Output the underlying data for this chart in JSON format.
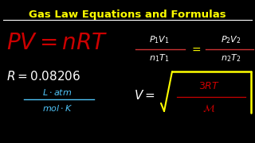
{
  "background_color": "#000000",
  "title": "Gas Law Equations and Formulas",
  "title_color": "#FFFF00",
  "title_fontsize": 9.5,
  "line_color": "#FFFFFF",
  "pv_nrt_color": "#CC0000",
  "r_value_color": "#FFFFFF",
  "units_color": "#4FC3F7",
  "combined_color": "#FFFFFF",
  "vrms_color": "#FFFFFF",
  "radical_color": "#FFFF00",
  "radical_content_color": "#CC0000",
  "pv_fontsize": 20,
  "r_fontsize": 11,
  "units_fontsize": 8,
  "combined_fontsize": 8,
  "vrms_fontsize": 11,
  "inner_fontsize": 9
}
